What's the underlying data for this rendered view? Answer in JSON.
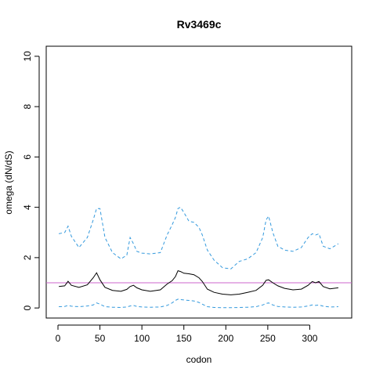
{
  "chart_data": {
    "type": "line",
    "title": "Rv3469c",
    "xlabel": "codon",
    "ylabel": "omega (dN/dS)",
    "xlim": [
      -14,
      350
    ],
    "ylim": [
      -0.4,
      10.4
    ],
    "xticks": [
      0,
      50,
      100,
      150,
      200,
      250,
      300
    ],
    "yticks": [
      0,
      2,
      4,
      6,
      8,
      10
    ],
    "reference_line": {
      "y": 1,
      "color": "#cc66cc"
    },
    "colors": {
      "mean": "#000000",
      "bounds": "#3399dd"
    },
    "series": [
      {
        "style": "solid",
        "x": [
          1,
          8,
          12,
          16,
          25,
          35,
          42,
          46,
          50,
          56,
          65,
          75,
          82,
          86,
          90,
          94,
          100,
          110,
          122,
          130,
          136,
          140,
          143,
          146,
          150,
          156,
          162,
          168,
          172,
          178,
          186,
          196,
          206,
          216,
          226,
          236,
          244,
          248,
          251,
          256,
          262,
          270,
          280,
          290,
          298,
          303,
          307,
          311,
          316,
          324,
          334
        ],
        "y": [
          0.85,
          0.88,
          1.06,
          0.9,
          0.82,
          0.92,
          1.2,
          1.4,
          1.12,
          0.82,
          0.7,
          0.66,
          0.74,
          0.85,
          0.9,
          0.8,
          0.72,
          0.66,
          0.72,
          0.95,
          1.08,
          1.25,
          1.48,
          1.45,
          1.38,
          1.36,
          1.32,
          1.2,
          1.05,
          0.75,
          0.62,
          0.55,
          0.52,
          0.55,
          0.62,
          0.7,
          0.9,
          1.1,
          1.12,
          1.0,
          0.88,
          0.78,
          0.72,
          0.75,
          0.9,
          1.05,
          1.0,
          1.05,
          0.85,
          0.76,
          0.8
        ]
      },
      {
        "style": "dashed",
        "x": [
          1,
          8,
          12,
          16,
          25,
          35,
          42,
          46,
          50,
          56,
          65,
          75,
          82,
          86,
          90,
          94,
          100,
          110,
          122,
          130,
          136,
          140,
          143,
          146,
          150,
          156,
          162,
          168,
          172,
          178,
          186,
          196,
          206,
          216,
          226,
          236,
          244,
          248,
          251,
          256,
          262,
          270,
          280,
          290,
          298,
          303,
          307,
          311,
          316,
          324,
          334
        ],
        "y": [
          2.95,
          3.0,
          3.25,
          2.85,
          2.4,
          2.8,
          3.5,
          3.95,
          3.95,
          2.8,
          2.2,
          1.95,
          2.1,
          2.8,
          2.55,
          2.25,
          2.18,
          2.15,
          2.2,
          2.9,
          3.3,
          3.6,
          3.95,
          4.0,
          3.8,
          3.45,
          3.4,
          3.2,
          2.9,
          2.3,
          1.9,
          1.6,
          1.55,
          1.85,
          1.95,
          2.2,
          2.8,
          3.5,
          3.65,
          3.0,
          2.45,
          2.3,
          2.25,
          2.4,
          2.8,
          2.95,
          2.9,
          2.95,
          2.45,
          2.35,
          2.55
        ]
      },
      {
        "style": "dashed",
        "x": [
          1,
          8,
          12,
          16,
          25,
          35,
          42,
          46,
          50,
          56,
          65,
          75,
          82,
          86,
          90,
          94,
          100,
          110,
          122,
          130,
          136,
          140,
          143,
          146,
          150,
          156,
          162,
          168,
          172,
          178,
          186,
          196,
          206,
          216,
          226,
          236,
          244,
          248,
          251,
          256,
          262,
          270,
          280,
          290,
          298,
          303,
          307,
          311,
          316,
          324,
          334
        ],
        "y": [
          0.05,
          0.06,
          0.1,
          0.07,
          0.05,
          0.08,
          0.12,
          0.2,
          0.15,
          0.05,
          0.03,
          0.02,
          0.04,
          0.08,
          0.1,
          0.06,
          0.04,
          0.03,
          0.04,
          0.1,
          0.2,
          0.3,
          0.35,
          0.33,
          0.32,
          0.3,
          0.28,
          0.22,
          0.15,
          0.05,
          0.02,
          0.01,
          0.01,
          0.02,
          0.03,
          0.05,
          0.12,
          0.18,
          0.2,
          0.12,
          0.06,
          0.04,
          0.03,
          0.04,
          0.08,
          0.12,
          0.1,
          0.12,
          0.07,
          0.04,
          0.05
        ]
      }
    ]
  }
}
